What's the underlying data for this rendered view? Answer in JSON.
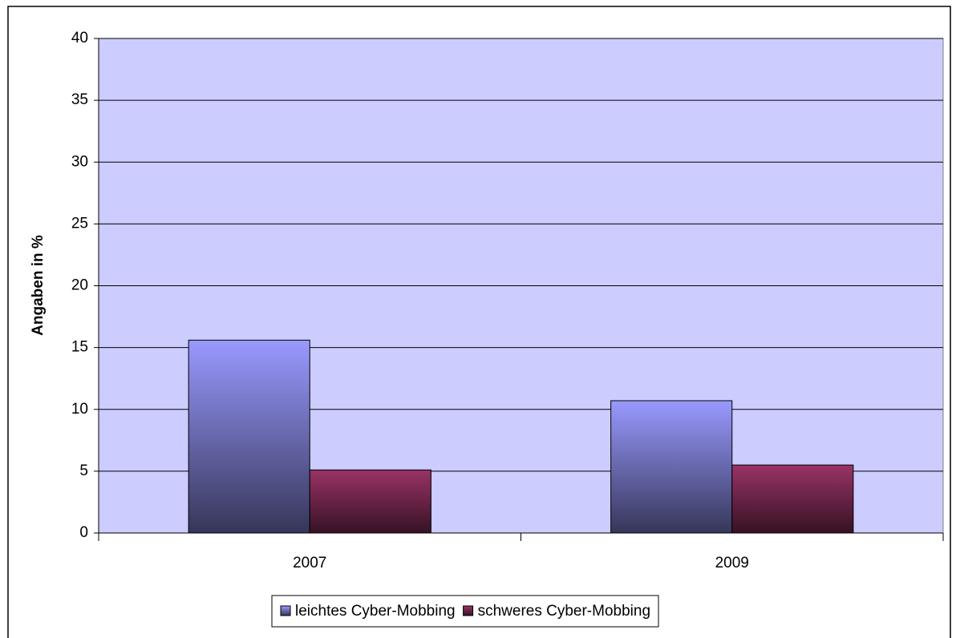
{
  "chart_data": {
    "type": "bar",
    "y_label": "Angaben in %",
    "categories": [
      "2007",
      "2009"
    ],
    "series": [
      {
        "name": "leichtes Cyber-Mobbing",
        "color": "#9999ff",
        "values": [
          15.6,
          10.7
        ]
      },
      {
        "name": "schweres Cyber-Mobbing",
        "color": "#993366",
        "values": [
          5.1,
          5.5
        ]
      }
    ],
    "ylim": [
      0,
      40
    ],
    "yticks": [
      0,
      5,
      10,
      15,
      20,
      25,
      30,
      35,
      40
    ],
    "grid": true,
    "legend": "bottom"
  }
}
